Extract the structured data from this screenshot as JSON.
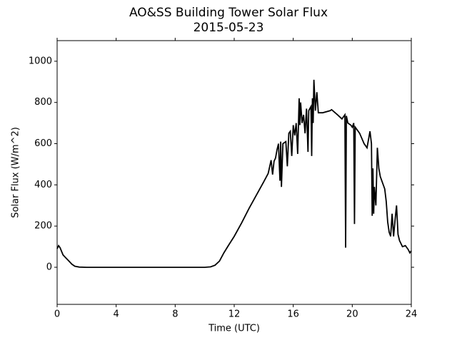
{
  "chart_data": {
    "type": "line",
    "title": "AO&SS Building Tower Solar Flux",
    "subtitle": "2015-05-23",
    "x_label": "Time (UTC)",
    "y_label": "Solar Flux (W/m^2)",
    "xlim": [
      0,
      24
    ],
    "xticks": [
      0,
      4,
      8,
      12,
      16,
      20,
      24
    ],
    "ylim": [
      -180,
      1100
    ],
    "yticks": [
      0,
      200,
      400,
      600,
      800,
      1000
    ],
    "series": [
      {
        "color": "#000000",
        "x": [
          0,
          0.1,
          0.2,
          0.4,
          0.6,
          0.8,
          1.0,
          1.2,
          1.5,
          2,
          4,
          8,
          10,
          10.4,
          10.7,
          11,
          11.3,
          11.6,
          12,
          12.5,
          13,
          13.5,
          14,
          14.3,
          14.5,
          14.6,
          14.7,
          14.8,
          14.9,
          15.0,
          15.1,
          15.15,
          15.2,
          15.3,
          15.5,
          15.6,
          15.7,
          15.8,
          15.9,
          16.0,
          16.1,
          16.2,
          16.3,
          16.4,
          16.45,
          16.5,
          16.6,
          16.7,
          16.8,
          16.9,
          17.0,
          17.05,
          17.2,
          17.25,
          17.3,
          17.35,
          17.4,
          17.5,
          17.6,
          17.7,
          18.0,
          18.5,
          18.6,
          19.0,
          19.3,
          19.4,
          19.5,
          19.55,
          19.6,
          19.7,
          19.9,
          20.0,
          20.1,
          20.15,
          20.2,
          20.5,
          20.8,
          21.0,
          21.1,
          21.2,
          21.3,
          21.35,
          21.4,
          21.45,
          21.5,
          21.6,
          21.7,
          21.8,
          21.9,
          22.0,
          22.1,
          22.2,
          22.3,
          22.4,
          22.5,
          22.6,
          22.7,
          22.8,
          22.9,
          23.0,
          23.1,
          23.2,
          23.4,
          23.6,
          23.8,
          23.9,
          24.0
        ],
        "values": [
          90,
          105,
          95,
          60,
          45,
          30,
          15,
          5,
          1,
          0,
          0,
          0,
          0,
          2,
          10,
          30,
          70,
          105,
          150,
          215,
          285,
          350,
          415,
          455,
          520,
          450,
          515,
          530,
          570,
          600,
          420,
          610,
          390,
          600,
          610,
          490,
          650,
          660,
          540,
          690,
          640,
          700,
          550,
          820,
          690,
          800,
          700,
          740,
          650,
          770,
          560,
          760,
          780,
          540,
          820,
          700,
          910,
          760,
          850,
          750,
          750,
          760,
          765,
          740,
          720,
          730,
          740,
          95,
          735,
          700,
          690,
          680,
          700,
          210,
          680,
          650,
          600,
          580,
          620,
          660,
          600,
          250,
          480,
          260,
          390,
          300,
          580,
          480,
          440,
          420,
          400,
          380,
          320,
          220,
          170,
          150,
          260,
          150,
          230,
          300,
          160,
          130,
          100,
          105,
          85,
          70,
          80
        ]
      }
    ]
  }
}
